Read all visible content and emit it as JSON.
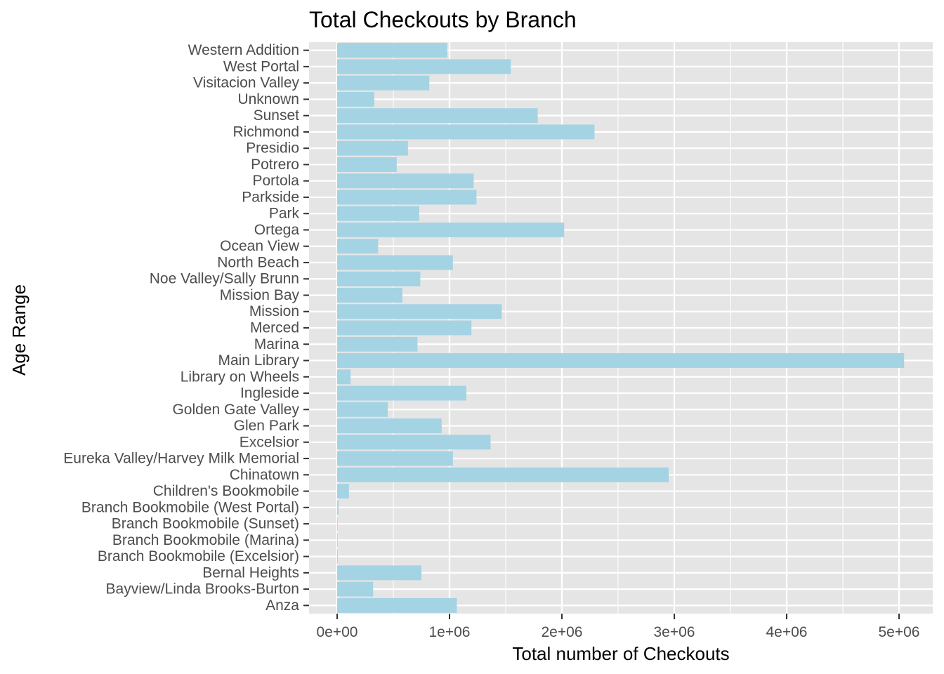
{
  "chart_data": {
    "type": "bar",
    "orientation": "horizontal",
    "title": "Total Checkouts by Branch",
    "xlabel": "Total number of Checkouts",
    "ylabel": "Age Range",
    "xlim": [
      -250000,
      5300000
    ],
    "xticks": [
      0,
      1000000,
      2000000,
      3000000,
      4000000,
      5000000
    ],
    "xtick_labels": [
      "0e+00",
      "1e+06",
      "2e+06",
      "3e+06",
      "4e+06",
      "5e+06"
    ],
    "grid": true,
    "bar_color": "#a4d3e4",
    "panel_color": "#e5e5e5",
    "grid_color": "#ffffff",
    "categories": [
      "Western Addition",
      "West Portal",
      "Visitacion Valley",
      "Unknown",
      "Sunset",
      "Richmond",
      "Presidio",
      "Potrero",
      "Portola",
      "Parkside",
      "Park",
      "Ortega",
      "Ocean View",
      "North Beach",
      "Noe Valley/Sally Brunn",
      "Mission Bay",
      "Mission",
      "Merced",
      "Marina",
      "Main Library",
      "Library on Wheels",
      "Ingleside",
      "Golden Gate Valley",
      "Glen Park",
      "Excelsior",
      "Eureka Valley/Harvey Milk Memorial",
      "Chinatown",
      "Children's Bookmobile",
      "Branch Bookmobile (West Portal)",
      "Branch Bookmobile (Sunset)",
      "Branch Bookmobile (Marina)",
      "Branch Bookmobile (Excelsior)",
      "Bernal Heights",
      "Bayview/Linda Brooks-Burton",
      "Anza"
    ],
    "values": [
      980000,
      1545000,
      820000,
      330000,
      1785000,
      2290000,
      630000,
      530000,
      1215000,
      1240000,
      730000,
      2020000,
      365000,
      1030000,
      740000,
      580000,
      1465000,
      1195000,
      715000,
      5045000,
      120000,
      1150000,
      450000,
      930000,
      1365000,
      1030000,
      2950000,
      105000,
      12000,
      3000,
      2000,
      6000,
      750000,
      320000,
      1065000
    ]
  }
}
